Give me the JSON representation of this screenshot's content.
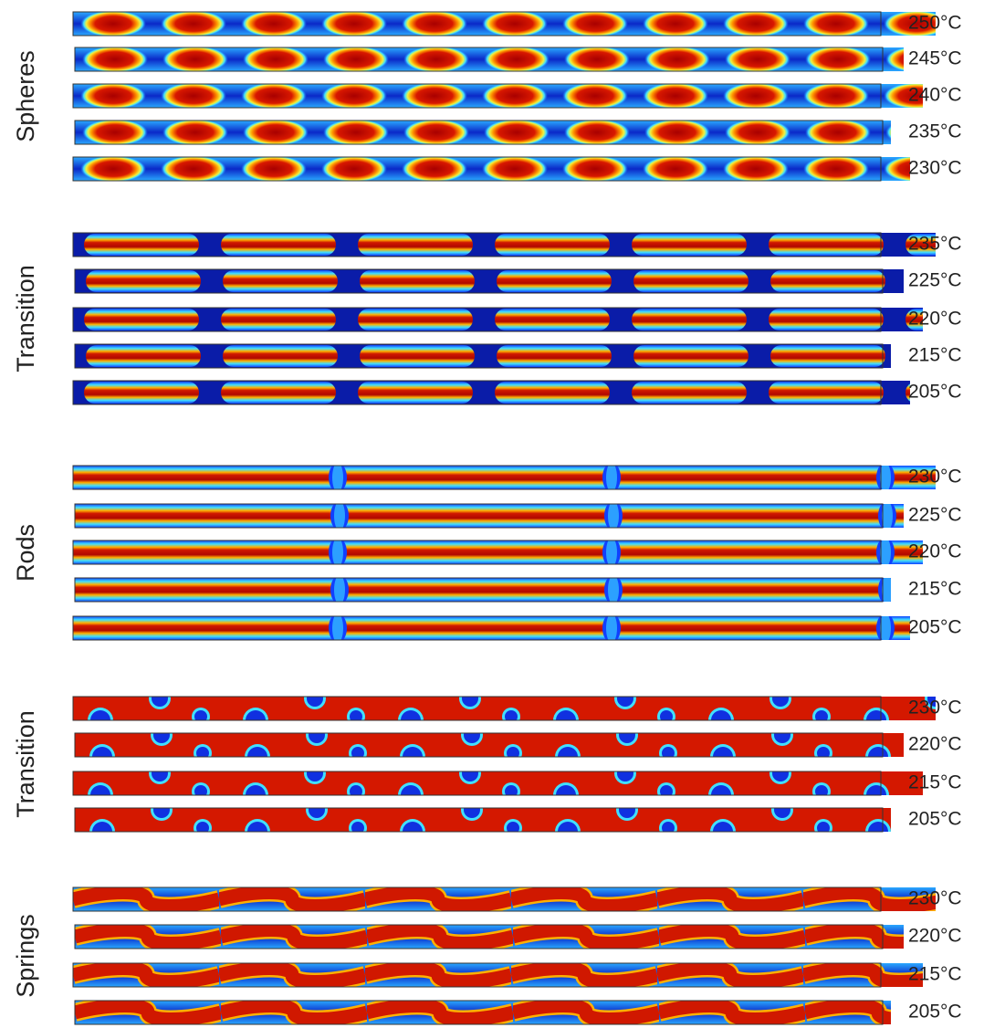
{
  "groups": [
    {
      "label": "Spheres",
      "rows": [
        "250°C",
        "245°C",
        "240°C",
        "235°C",
        "230°C"
      ]
    },
    {
      "label": "Transition",
      "rows": [
        "235°C",
        "225°C",
        "220°C",
        "215°C",
        "205°C"
      ]
    },
    {
      "label": "Rods",
      "rows": [
        "230°C",
        "225°C",
        "220°C",
        "215°C",
        "205°C"
      ]
    },
    {
      "label": "Transition",
      "rows": [
        "230°C",
        "220°C",
        "215°C",
        "205°C"
      ]
    },
    {
      "label": "Springs",
      "rows": [
        "230°C",
        "220°C",
        "215°C",
        "205°C"
      ]
    }
  ]
}
